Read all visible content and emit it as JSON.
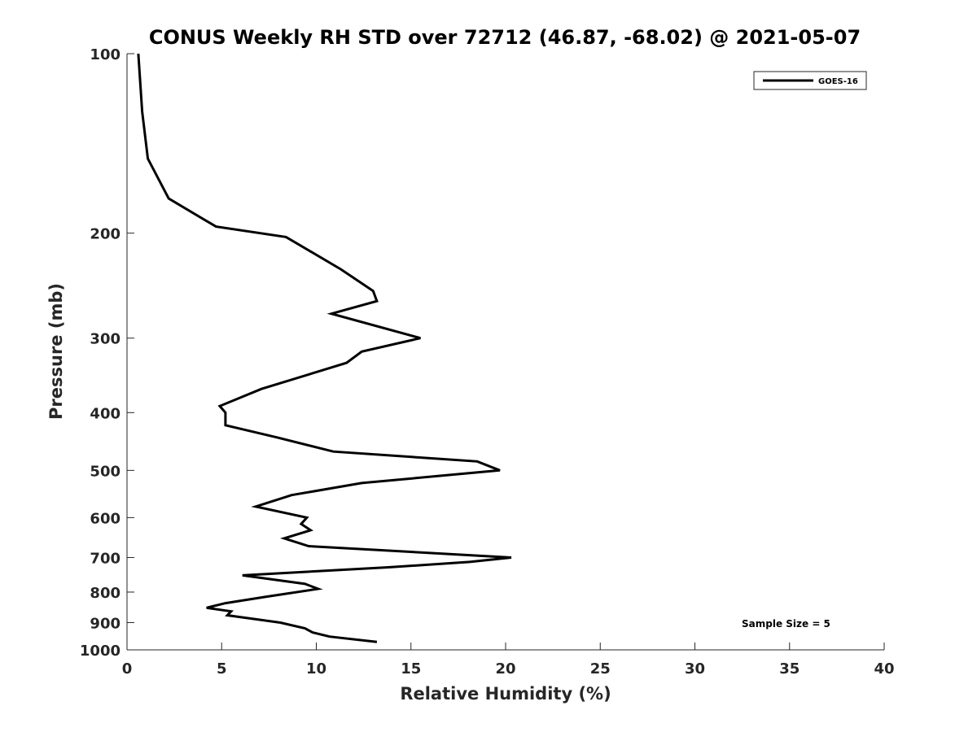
{
  "chart_data": {
    "type": "line",
    "title": "CONUS Weekly RH STD over 72712 (46.87, -68.02) @ 2021-05-07",
    "xlabel": "Relative Humidity (%)",
    "ylabel": "Pressure (mb)",
    "xlim": [
      0,
      40
    ],
    "ylim": [
      100,
      1000
    ],
    "y_scale": "log",
    "y_reversed": true,
    "grid": false,
    "legend_position": "top-right",
    "x_ticks": [
      0,
      5,
      10,
      15,
      20,
      25,
      30,
      35,
      40
    ],
    "x_tick_labels": [
      "0",
      "5",
      "10",
      "15",
      "20",
      "25",
      "30",
      "35",
      "40"
    ],
    "y_ticks": [
      100,
      200,
      300,
      400,
      500,
      600,
      700,
      800,
      900,
      1000
    ],
    "y_tick_labels": [
      "100",
      "200",
      "300",
      "400",
      "500",
      "600",
      "700",
      "800",
      "900",
      "1000"
    ],
    "series": [
      {
        "name": "GOES-16",
        "color": "#000000",
        "points": [
          [
            0.6,
            100
          ],
          [
            0.8,
            125
          ],
          [
            1.1,
            150
          ],
          [
            2.2,
            175
          ],
          [
            4.7,
            195
          ],
          [
            8.4,
            203
          ],
          [
            11.3,
            230
          ],
          [
            13.0,
            250
          ],
          [
            13.2,
            260
          ],
          [
            10.8,
            273
          ],
          [
            15.5,
            300
          ],
          [
            12.4,
            316
          ],
          [
            11.6,
            330
          ],
          [
            7.1,
            365
          ],
          [
            4.9,
            390
          ],
          [
            5.2,
            400
          ],
          [
            5.2,
            420
          ],
          [
            7.9,
            440
          ],
          [
            10.9,
            465
          ],
          [
            18.5,
            483
          ],
          [
            19.7,
            500
          ],
          [
            12.4,
            525
          ],
          [
            8.7,
            550
          ],
          [
            6.8,
            575
          ],
          [
            9.5,
            600
          ],
          [
            9.2,
            615
          ],
          [
            9.7,
            630
          ],
          [
            8.3,
            650
          ],
          [
            9.6,
            670
          ],
          [
            20.3,
            700
          ],
          [
            18.1,
            712
          ],
          [
            13.8,
            727
          ],
          [
            6.1,
            750
          ],
          [
            9.4,
            775
          ],
          [
            10.1,
            790
          ],
          [
            7.3,
            815
          ],
          [
            5.2,
            835
          ],
          [
            4.2,
            850
          ],
          [
            5.5,
            862
          ],
          [
            5.3,
            875
          ],
          [
            8.1,
            900
          ],
          [
            9.4,
            920
          ],
          [
            9.8,
            935
          ],
          [
            10.7,
            950
          ],
          [
            13.2,
            970
          ]
        ]
      }
    ],
    "annotations": [
      {
        "text": "Sample Size = 5"
      }
    ]
  }
}
